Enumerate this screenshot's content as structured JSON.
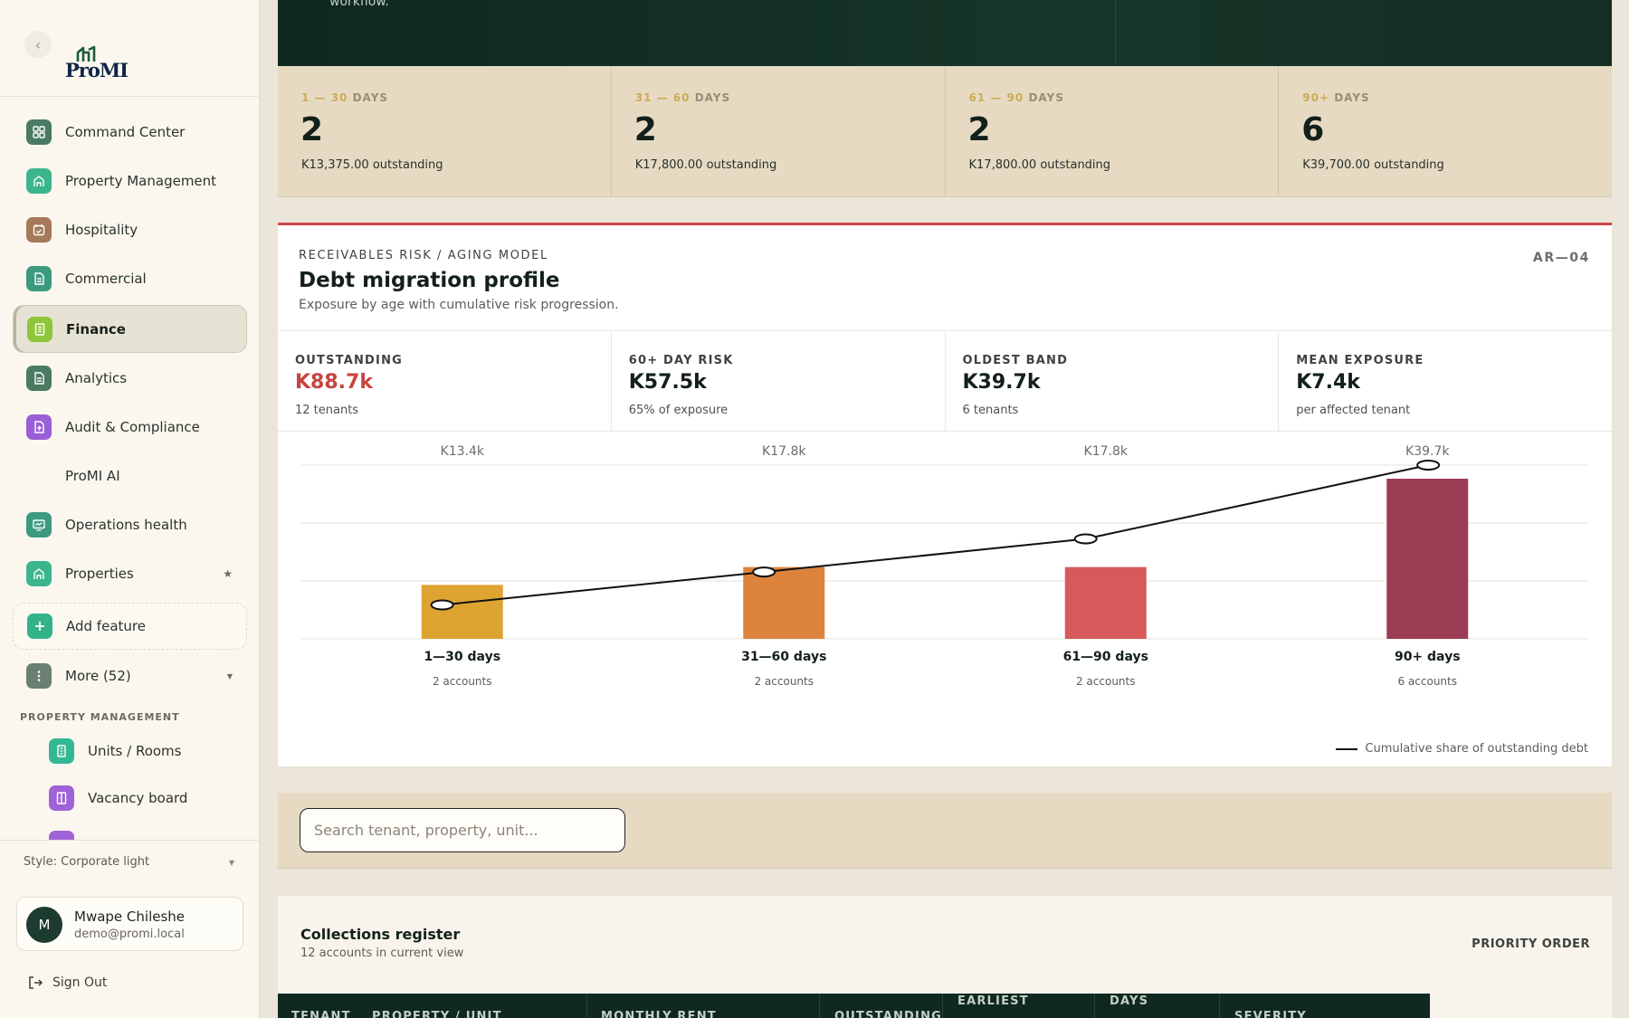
{
  "sidebar": {
    "logo_text": "ProMI",
    "items": [
      {
        "label": "Command Center",
        "icon": "grid-icon",
        "color": "#4a7a62"
      },
      {
        "label": "Property Management",
        "icon": "home-icon",
        "color": "#3cb58c"
      },
      {
        "label": "Hospitality",
        "icon": "calendar-check-icon",
        "color": "#a6795a"
      },
      {
        "label": "Commercial",
        "icon": "document-icon",
        "color": "#3c9a7f"
      },
      {
        "label": "Finance",
        "icon": "receipt-icon",
        "color": "#8fc53a"
      },
      {
        "label": "Analytics",
        "icon": "document-icon",
        "color": "#4a7a62"
      },
      {
        "label": "Audit & Compliance",
        "icon": "file-upload-icon",
        "color": "#9a5fd6"
      },
      {
        "label": "ProMI AI",
        "icon": "",
        "color": ""
      },
      {
        "label": "Operations health",
        "icon": "monitor-icon",
        "color": "#3c9a7f"
      },
      {
        "label": "Properties",
        "icon": "home-icon",
        "color": "#3cb58c"
      },
      {
        "label": "Add feature",
        "icon": "plus-icon",
        "color": "#34b38a"
      },
      {
        "label": "More (52)",
        "icon": "dots-vertical-icon",
        "color": "#6b7f72"
      }
    ],
    "section_label": "PROPERTY MANAGEMENT",
    "sub_items": [
      {
        "label": "Units / Rooms",
        "icon": "building-icon",
        "color": "#33b896"
      },
      {
        "label": "Vacancy board",
        "icon": "door-icon",
        "color": "#a062d8"
      }
    ],
    "style_selector": "Style: Corporate light",
    "user": {
      "initial": "M",
      "name": "Mwape Chileshe",
      "email": "demo@promi.local"
    },
    "sign_out": "Sign Out"
  },
  "hero": {
    "text": "workflow."
  },
  "aging": [
    {
      "range": "1 — 30",
      "unit": "DAYS",
      "count": "2",
      "outstanding": "K13,375.00 outstanding"
    },
    {
      "range": "31 — 60",
      "unit": "DAYS",
      "count": "2",
      "outstanding": "K17,800.00 outstanding"
    },
    {
      "range": "61 — 90",
      "unit": "DAYS",
      "count": "2",
      "outstanding": "K17,800.00 outstanding"
    },
    {
      "range": "90+",
      "unit": "DAYS",
      "count": "6",
      "outstanding": "K39,700.00 outstanding"
    }
  ],
  "risk": {
    "kicker": "RECEIVABLES RISK / AGING MODEL",
    "title": "Debt migration profile",
    "subtitle": "Exposure by age with cumulative risk progression.",
    "code": "AR—04",
    "metrics": [
      {
        "label": "OUTSTANDING",
        "value": "K88.7k",
        "sub": "12 tenants",
        "highlight": true
      },
      {
        "label": "60+ DAY RISK",
        "value": "K57.5k",
        "sub": "65% of exposure",
        "highlight": false
      },
      {
        "label": "OLDEST BAND",
        "value": "K39.7k",
        "sub": "6 tenants",
        "highlight": false
      },
      {
        "label": "MEAN EXPOSURE",
        "value": "K7.4k",
        "sub": "per affected tenant",
        "highlight": false
      }
    ],
    "legend": "Cumulative share of outstanding debt"
  },
  "chart_data": {
    "type": "bar",
    "categories": [
      "1—30 days",
      "31—60 days",
      "61—90 days",
      "90+ days"
    ],
    "values": [
      13375,
      17800,
      17800,
      39700
    ],
    "value_labels": [
      "K13.4k",
      "K17.8k",
      "K17.8k",
      "K39.7k"
    ],
    "accounts": [
      "2 accounts",
      "2 accounts",
      "2 accounts",
      "6 accounts"
    ],
    "colors": [
      "#dea432",
      "#dc843e",
      "#d65a5a",
      "#9c3d55"
    ],
    "ylim": [
      0,
      39700
    ],
    "grid": true,
    "series": [
      {
        "name": "Cumulative share of outstanding debt",
        "type": "line",
        "values": [
          15.1,
          35.1,
          55.2,
          100
        ]
      }
    ],
    "line_ylim": [
      0,
      100
    ],
    "legend_position": "bottom-right"
  },
  "search": {
    "placeholder": "Search tenant, property, unit..."
  },
  "collections": {
    "title": "Collections register",
    "subtitle": "12 accounts in current view",
    "order": "PRIORITY ORDER",
    "columns": [
      "TENANT",
      "PROPERTY / UNIT",
      "MONTHLY RENT",
      "OUTSTANDING",
      "EARLIEST",
      "DAYS",
      "SEVERITY"
    ]
  }
}
